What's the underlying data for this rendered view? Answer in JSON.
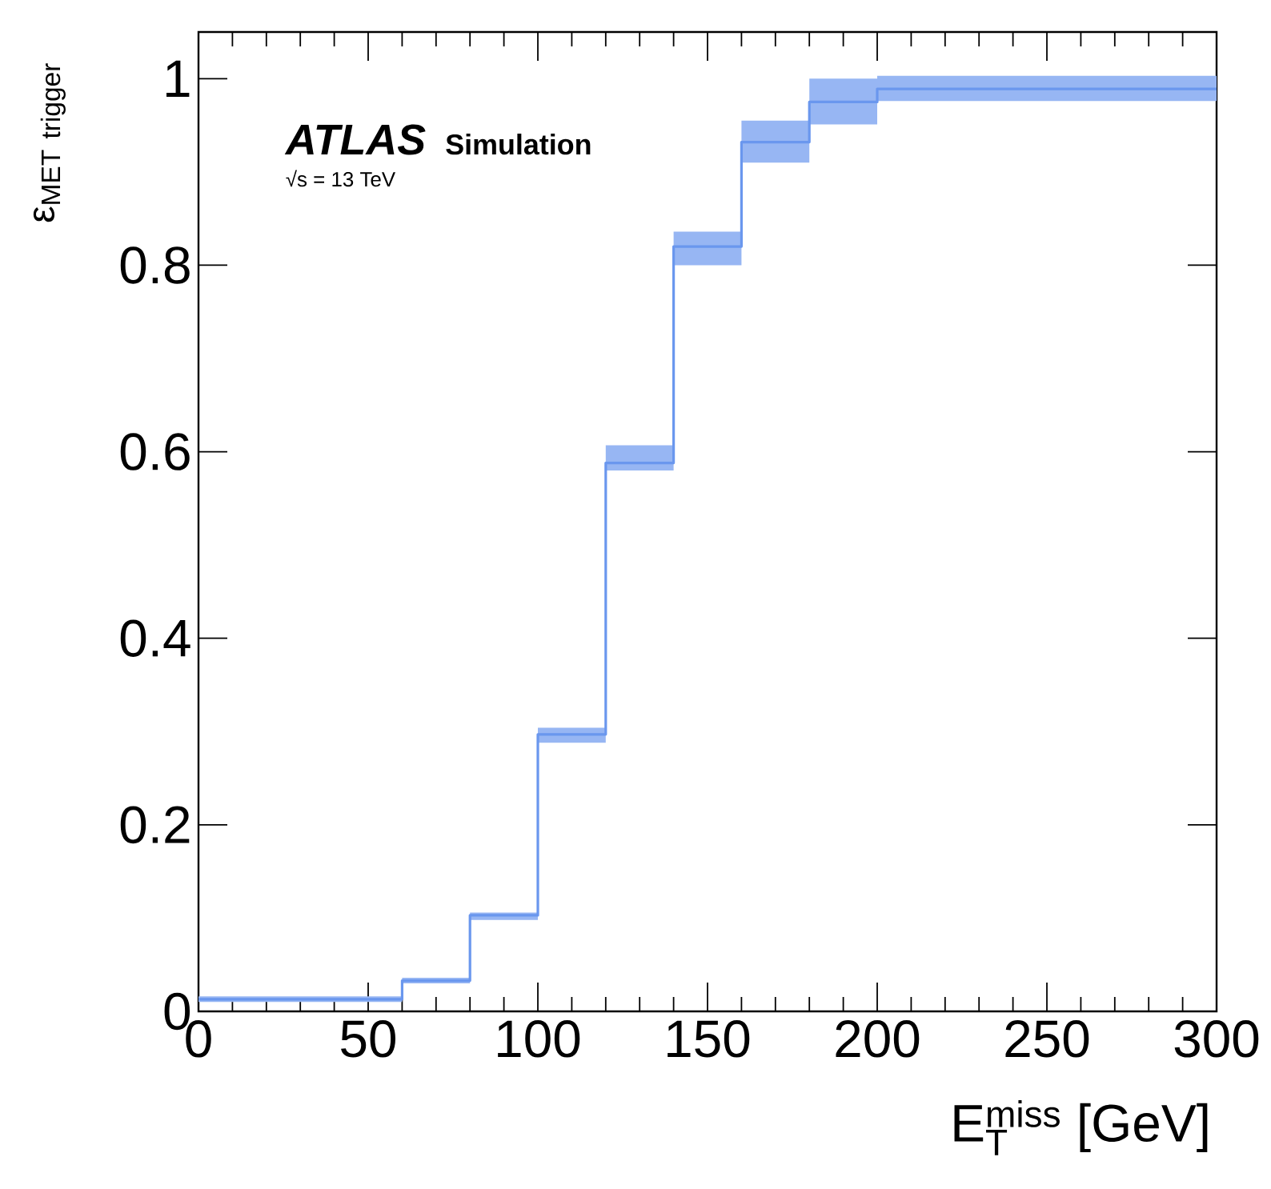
{
  "chart_data": {
    "type": "step",
    "xlabel": "\\mathrm{E}_{\\mathrm{T}}^{\\mathrm{miss}}\\ \\mbox{[GeV]}",
    "ylabel": "\\mbox{ε}_{\\mathrm{MET\\ trigger}}",
    "annotations": [
      "ATLAS",
      "Simulation",
      "√s = 13 TeV"
    ],
    "series": [
      {
        "color": "#6a97ee",
        "x": [
          0,
          60,
          80,
          100,
          120,
          140,
          160,
          180,
          200,
          300
        ],
        "values": [
          0.013,
          0.033,
          0.103,
          0.297,
          0.588,
          0.82,
          0.932,
          0.975,
          0.989,
          0.989
        ],
        "lower": [
          0.01,
          0.03,
          0.098,
          0.288,
          0.58,
          0.8,
          0.91,
          0.951,
          0.976,
          0.976
        ],
        "upper": [
          0.016,
          0.036,
          0.106,
          0.304,
          0.607,
          0.836,
          0.955,
          1.0,
          1.003,
          1.003
        ]
      }
    ],
    "xlim": [
      0,
      300
    ],
    "ylim": [
      0,
      1.05
    ],
    "xticks": [
      0,
      50,
      100,
      150,
      200,
      250,
      300
    ],
    "yticks": [
      0,
      0.2,
      0.4,
      0.6,
      0.8,
      1
    ],
    "grid": false
  }
}
